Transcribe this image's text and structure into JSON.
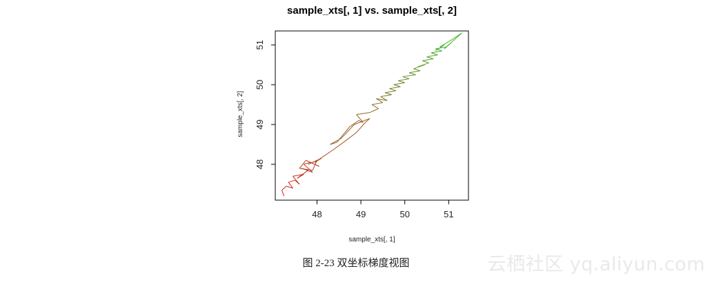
{
  "chart_data": {
    "type": "line",
    "title": "sample_xts[, 1] vs. sample_xts[, 2]",
    "xlabel": "sample_xts[, 1]",
    "ylabel": "sample_xts[, 2]",
    "xlim": [
      47.05,
      51.45
    ],
    "ylim": [
      47.1,
      51.35
    ],
    "xticks": [
      48,
      49,
      50,
      51
    ],
    "yticks": [
      48,
      49,
      50,
      51
    ],
    "grid": false,
    "legend": "none",
    "color_start": "#d81b1b",
    "color_end": "#3dbb2f",
    "series": [
      {
        "x": [
          47.25,
          47.2,
          47.3,
          47.45,
          47.35,
          47.5,
          47.6,
          47.45,
          47.7,
          47.55,
          47.8,
          47.65,
          47.9,
          47.7,
          47.85,
          48.05,
          47.75,
          47.6,
          47.9,
          48.0,
          47.8,
          48.1,
          47.95,
          48.15,
          48.35,
          48.6,
          48.9,
          49.1,
          49.2,
          48.85,
          48.55,
          48.3,
          48.45,
          48.75,
          48.95,
          49.05,
          48.9,
          49.2,
          49.4,
          49.25,
          49.5,
          49.35,
          49.6,
          49.45,
          49.7,
          49.55,
          49.8,
          49.65,
          49.9,
          49.75,
          50.0,
          49.85,
          50.1,
          49.95,
          50.25,
          50.1,
          50.35,
          50.2,
          50.45,
          50.3,
          50.55,
          50.4,
          50.65,
          50.5,
          50.75,
          50.6,
          50.85,
          50.7,
          50.95,
          51.05,
          50.9,
          51.3,
          51.1,
          50.8,
          50.9,
          50.7
        ],
        "y": [
          47.2,
          47.35,
          47.45,
          47.4,
          47.55,
          47.6,
          47.5,
          47.7,
          47.75,
          47.65,
          47.85,
          47.9,
          47.8,
          48.0,
          48.05,
          47.95,
          48.1,
          47.9,
          47.85,
          48.1,
          48.0,
          48.15,
          48.05,
          48.2,
          48.35,
          48.55,
          48.8,
          49.05,
          49.15,
          49.0,
          48.65,
          48.5,
          48.55,
          48.95,
          49.1,
          49.05,
          49.25,
          49.3,
          49.4,
          49.5,
          49.55,
          49.65,
          49.6,
          49.7,
          49.75,
          49.8,
          49.85,
          49.9,
          49.95,
          50.0,
          50.05,
          50.1,
          50.15,
          50.2,
          50.25,
          50.3,
          50.35,
          50.4,
          50.5,
          50.45,
          50.55,
          50.6,
          50.65,
          50.7,
          50.75,
          50.8,
          50.85,
          50.9,
          50.95,
          51.05,
          50.9,
          51.3,
          51.15,
          50.95,
          51.0,
          50.85
        ]
      }
    ]
  },
  "caption": "图 2-23    双坐标梯度视图",
  "watermark": "云栖社区 yq.aliyun.com"
}
